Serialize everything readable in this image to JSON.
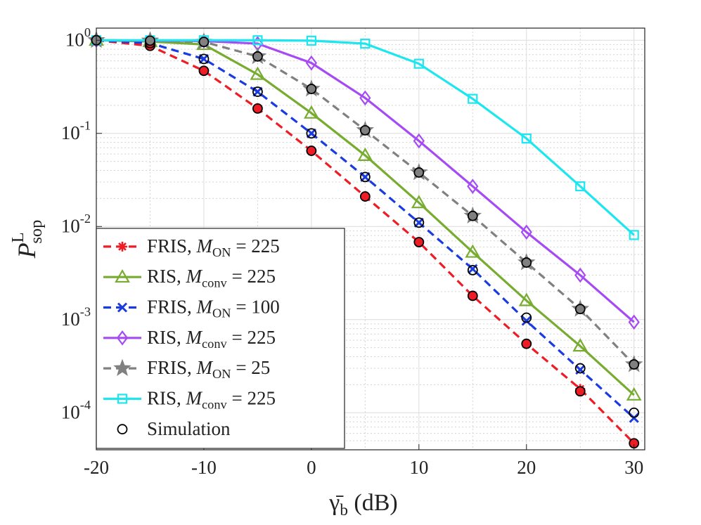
{
  "chart_data": {
    "type": "line",
    "xlabel": "γ̄_b (dB)",
    "ylabel": "P^L_sop",
    "x": [
      -20,
      -15,
      -10,
      -5,
      0,
      5,
      10,
      15,
      20,
      25,
      30
    ],
    "xlim": [
      -20,
      31
    ],
    "xticks": [
      -20,
      -10,
      0,
      10,
      20,
      30
    ],
    "ylim": [
      4e-05,
      1.35
    ],
    "log_y": true,
    "yticks": [
      {
        "value": 1,
        "label": "10^0"
      },
      {
        "value": 0.1,
        "label": "10^-1"
      },
      {
        "value": 0.01,
        "label": "10^-2"
      },
      {
        "value": 0.001,
        "label": "10^-3"
      },
      {
        "value": 0.0001,
        "label": "10^-4"
      }
    ],
    "grid": true,
    "minor_grid": true,
    "legend": "lower left",
    "series": [
      {
        "name": "FRIS, M_ON = 225",
        "color": "#ee1c25",
        "marker": "asterisk",
        "dashed": true,
        "values": [
          1.0,
          0.87,
          0.47,
          0.185,
          0.065,
          0.021,
          0.0068,
          0.0018,
          0.00055,
          0.00018,
          4.7e-05
        ]
      },
      {
        "name": "RIS, M_conv = 225",
        "color": "#77ac30",
        "marker": "triangle",
        "dashed": false,
        "values": [
          1.0,
          0.97,
          0.9,
          0.43,
          0.165,
          0.058,
          0.018,
          0.0053,
          0.0016,
          0.00052,
          0.000155
        ]
      },
      {
        "name": "FRIS, M_ON = 100",
        "color": "#1a3be0",
        "marker": "x",
        "dashed": true,
        "values": [
          1.0,
          0.93,
          0.63,
          0.28,
          0.1,
          0.034,
          0.011,
          0.0035,
          0.00097,
          0.00029,
          8.8e-05
        ]
      },
      {
        "name": "RIS, M_conv = 225",
        "color": "#a64bf4",
        "marker": "diamond",
        "dashed": false,
        "values": [
          1.0,
          0.99,
          0.98,
          0.92,
          0.57,
          0.24,
          0.083,
          0.027,
          0.0087,
          0.003,
          0.00094
        ]
      },
      {
        "name": "FRIS, M_ON = 25",
        "color": "#808080",
        "marker": "star",
        "dashed": true,
        "values": [
          1.0,
          0.99,
          0.96,
          0.67,
          0.3,
          0.108,
          0.038,
          0.013,
          0.0041,
          0.0013,
          0.00033
        ]
      },
      {
        "name": "RIS, M_conv = 225",
        "color": "#1ee6ef",
        "marker": "square",
        "dashed": false,
        "values": [
          1.0,
          1.0,
          1.0,
          1.0,
          0.99,
          0.92,
          0.56,
          0.235,
          0.088,
          0.027,
          0.0081
        ]
      }
    ],
    "simulation": {
      "name": "Simulation",
      "color": "#000000",
      "series": [
        {
          "fill": "#ee1c25",
          "values": [
            1.0,
            0.87,
            0.47,
            0.185,
            0.065,
            0.021,
            0.0068,
            0.0018,
            0.00055,
            0.00017,
            4.7e-05
          ]
        },
        {
          "fill": "none",
          "values": [
            1.0,
            0.93,
            0.63,
            0.28,
            0.1,
            0.034,
            0.011,
            0.0034,
            0.00105,
            0.0003,
            0.0001
          ]
        },
        {
          "fill": "#808080",
          "values": [
            1.0,
            0.99,
            0.96,
            0.67,
            0.3,
            0.108,
            0.038,
            0.013,
            0.0041,
            0.0013,
            0.00033
          ]
        }
      ]
    }
  }
}
